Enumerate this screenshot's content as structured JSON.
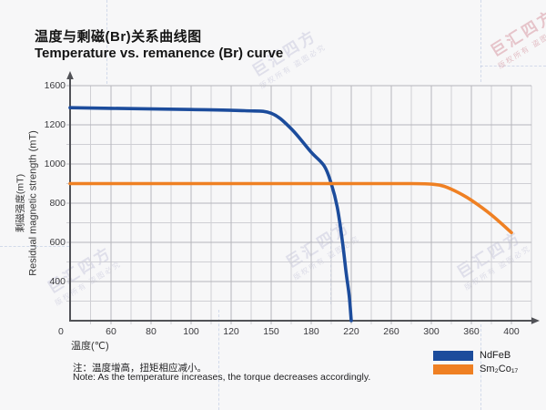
{
  "page": {
    "background": "#f7f7f8"
  },
  "header": {
    "title_zh": "温度与剩磁(Br)关系曲线图",
    "title_en": "Temperature vs. remanence (Br) curve"
  },
  "chart_data": {
    "type": "line",
    "title_zh": "温度与剩磁(Br)关系曲线图",
    "title_en": "Temperature vs. remanence (Br) curve",
    "xlabel": "温度(℃)",
    "ylabel_zh": "剩磁强度(mT)",
    "ylabel_en": "Residual magnetic strength (mT)",
    "x_ticks": [
      0,
      60,
      80,
      100,
      120,
      150,
      180,
      220,
      260,
      300,
      360,
      400
    ],
    "y_ticks": [
      0,
      400,
      600,
      800,
      1000,
      1200,
      1600
    ],
    "x_scale": "irregular tick values at equal pixel spacing",
    "grid": true,
    "legend_position": "bottom-right",
    "series": [
      {
        "name": "NdFeB",
        "color": "#1c4c9c",
        "points": [
          [
            0,
            1375
          ],
          [
            60,
            1368
          ],
          [
            100,
            1356
          ],
          [
            130,
            1344
          ],
          [
            150,
            1318
          ],
          [
            165,
            1180
          ],
          [
            180,
            1060
          ],
          [
            193,
            990
          ],
          [
            200,
            900
          ],
          [
            206,
            780
          ],
          [
            211,
            610
          ],
          [
            215,
            440
          ],
          [
            218,
            250
          ],
          [
            220,
            0
          ]
        ]
      },
      {
        "name": "Sm₂Co₁₇",
        "color": "#ef8023",
        "points": [
          [
            0,
            900
          ],
          [
            100,
            900
          ],
          [
            200,
            900
          ],
          [
            280,
            900
          ],
          [
            305,
            896
          ],
          [
            320,
            885
          ],
          [
            340,
            855
          ],
          [
            360,
            815
          ],
          [
            380,
            740
          ],
          [
            400,
            650
          ]
        ]
      }
    ]
  },
  "note": {
    "zh": "注：温度增高，扭矩相应减小。",
    "en": "Note: As the temperature increases, the torque decreases accordingly."
  },
  "watermark": {
    "brand": "巨汇四方",
    "claim": "版权所有 盗图必究"
  }
}
